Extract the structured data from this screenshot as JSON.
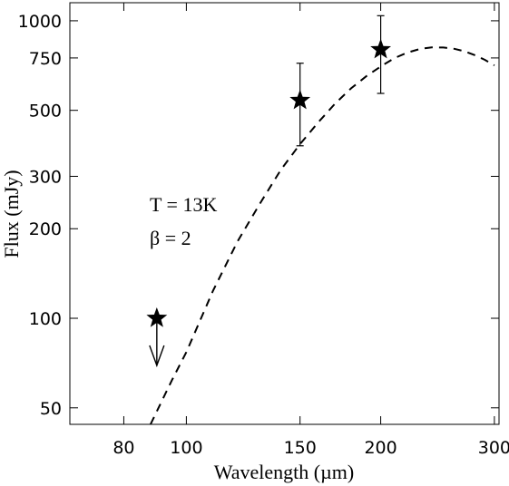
{
  "chart_data": {
    "type": "scatter",
    "xlabel": "Wavelength (µm)",
    "ylabel": "Flux (mJy)",
    "x_scale": "log",
    "y_scale": "log",
    "xlim": [
      66,
      305
    ],
    "ylim": [
      44,
      1150
    ],
    "x_ticks": [
      80,
      100,
      150,
      200,
      300
    ],
    "y_ticks": [
      50,
      100,
      200,
      300,
      500,
      750,
      1000
    ],
    "grid": false,
    "points": [
      {
        "x": 90,
        "y": 100,
        "upper_limit": true
      },
      {
        "x": 150,
        "y": 540,
        "y_err_low": 160,
        "y_err_high": 180
      },
      {
        "x": 200,
        "y": 800,
        "y_err_low": 230,
        "y_err_high": 240
      }
    ],
    "model_curve": {
      "style": "dashed",
      "x": [
        88,
        95,
        100,
        110,
        120,
        130,
        140,
        150,
        160,
        170,
        180,
        190,
        200,
        210,
        220,
        230,
        240,
        250,
        260,
        270,
        280,
        290,
        300
      ],
      "y": [
        44,
        62,
        77,
        124,
        181,
        243,
        315,
        385,
        455,
        527,
        593,
        651,
        702,
        749,
        782,
        804,
        814,
        813,
        805,
        789,
        766,
        739,
        708
      ]
    },
    "annotations": [
      {
        "text": "T = 13K"
      },
      {
        "text": "β = 2"
      }
    ]
  }
}
